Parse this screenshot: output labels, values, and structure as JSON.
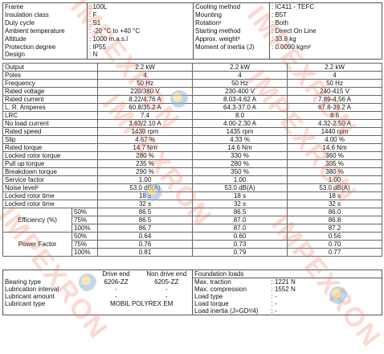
{
  "spec_left": [
    {
      "label": "Frame",
      "value": ": 100L"
    },
    {
      "label": "Insulation class",
      "value": ": F"
    },
    {
      "label": "Duty cycle",
      "value": ": S1"
    },
    {
      "label": "Ambient temperature",
      "value": ": -20 °C to +40 °C"
    },
    {
      "label": "Altitude",
      "value": ": 1000 m.a.s.l"
    },
    {
      "label": "Protection degree",
      "value": ": IP55"
    },
    {
      "label": "Design",
      "value": ": N"
    }
  ],
  "spec_right": [
    {
      "label": "Cooling method",
      "value": ": IC411 - TEFC"
    },
    {
      "label": "Mounting",
      "value": ": B5T"
    },
    {
      "label": "Rotation¹",
      "value": ": Both"
    },
    {
      "label": "Starting method",
      "value": ": Direct On Line"
    },
    {
      "label": "Approx. weight³",
      "value": ": 33.8 kg"
    },
    {
      "label": "Moment of inertia (J)",
      "value": ": 0.0090 kgm²"
    },
    {
      "label": "",
      "value": ""
    }
  ],
  "perf_rows": [
    {
      "label": "Output",
      "v": [
        "2.2 kW",
        "2.2 kW",
        "2.2 kW"
      ]
    },
    {
      "label": "Poles",
      "v": [
        "4",
        "4",
        "4"
      ]
    },
    {
      "label": "Frequency",
      "v": [
        "50 Hz",
        "50 Hz",
        "50 Hz"
      ]
    },
    {
      "label": "Rated voltage",
      "v": [
        "220/380 V",
        "230-400 V",
        "240-415 V"
      ]
    },
    {
      "label": "Rated current",
      "v": [
        "8.22/4.76 A",
        "8.03-4.62 A",
        "7.89-4.56 A"
      ]
    },
    {
      "label": "L. R. Amperes",
      "v": [
        "60.8/35.2 A",
        "64.3-37.0 A",
        "67.8-39.2 A"
      ]
    },
    {
      "label": "LRC",
      "v": [
        "7.4",
        "8.0",
        "8.6"
      ]
    },
    {
      "label": "No load current",
      "v": [
        "3.63/2.10 A",
        "4.00-2.30 A",
        "4.32-2.50 A"
      ]
    },
    {
      "label": "Rated speed",
      "v": [
        "1430 rpm",
        "1435 rpm",
        "1440 rpm"
      ]
    },
    {
      "label": "Slip",
      "v": [
        "4.67 %",
        "4.33 %",
        "4.00 %"
      ]
    },
    {
      "label": "Rated torque",
      "v": [
        "14.7 Nm",
        "14.6 Nm",
        "14.6 Nm"
      ]
    },
    {
      "label": "Locked rotor torque",
      "v": [
        "280 %",
        "330 %",
        "360 %"
      ]
    },
    {
      "label": "Pull up torque",
      "v": [
        "235 %",
        "280 %",
        "305 %"
      ]
    },
    {
      "label": "Breakdown torque",
      "v": [
        "290 %",
        "350 %",
        "380 %"
      ]
    },
    {
      "label": "Service factor",
      "v": [
        "1.00",
        "1.00",
        "1.00"
      ]
    },
    {
      "label": "Noise level²",
      "v": [
        "53.0 dB(A)",
        "53.0 dB(A)",
        "53.0 dB(A)"
      ]
    },
    {
      "label": "Locked rotor time",
      "v": [
        "18 s",
        "18 s",
        "18 s"
      ]
    },
    {
      "label": "Locked rotor time",
      "v": [
        "32 s",
        "32 s",
        "32 s"
      ]
    }
  ],
  "efficiency": {
    "label": "Efficiency (%)",
    "rows": [
      {
        "load": "50%",
        "v": [
          "86.5",
          "86.5",
          "86.0"
        ]
      },
      {
        "load": "75%",
        "v": [
          "86.5",
          "87.0",
          "86.8"
        ]
      },
      {
        "load": "100%",
        "v": [
          "86.7",
          "87.0",
          "87.2"
        ]
      }
    ]
  },
  "power_factor": {
    "label": "Power Factor",
    "rows": [
      {
        "load": "50%",
        "v": [
          "0.64",
          "0.60",
          "0.56"
        ]
      },
      {
        "load": "75%",
        "v": [
          "0.76",
          "0.73",
          "0.70"
        ]
      },
      {
        "load": "100%",
        "v": [
          "0.81",
          "0.79",
          "0.77"
        ]
      }
    ]
  },
  "bearings": {
    "drive_end_header": "Drive end",
    "non_drive_end_header": "Non drive end",
    "rows": [
      {
        "label": "Bearing type",
        "de": "6206-ZZ",
        "nde": "6205-ZZ"
      },
      {
        "label": "Lubrication interval",
        "de": "-",
        "nde": "-"
      },
      {
        "label": "Lubricant amount",
        "de": "-",
        "nde": "-"
      },
      {
        "label": "Lubricant type",
        "merged": "MOBIL POLYREX EM"
      }
    ]
  },
  "foundation": {
    "title": "Foundation loads",
    "rows": [
      {
        "label": "Max. traction",
        "value": ": 1221 N"
      },
      {
        "label": "Max. compression",
        "value": ": 1552 N"
      },
      {
        "label": "Load type",
        "value": ": -"
      },
      {
        "label": "Load torque",
        "value": ": -"
      },
      {
        "label": "Load inertia (J=GD²/4)",
        "value": ": -"
      }
    ]
  },
  "watermark": {
    "text": "IMPEXRON"
  }
}
